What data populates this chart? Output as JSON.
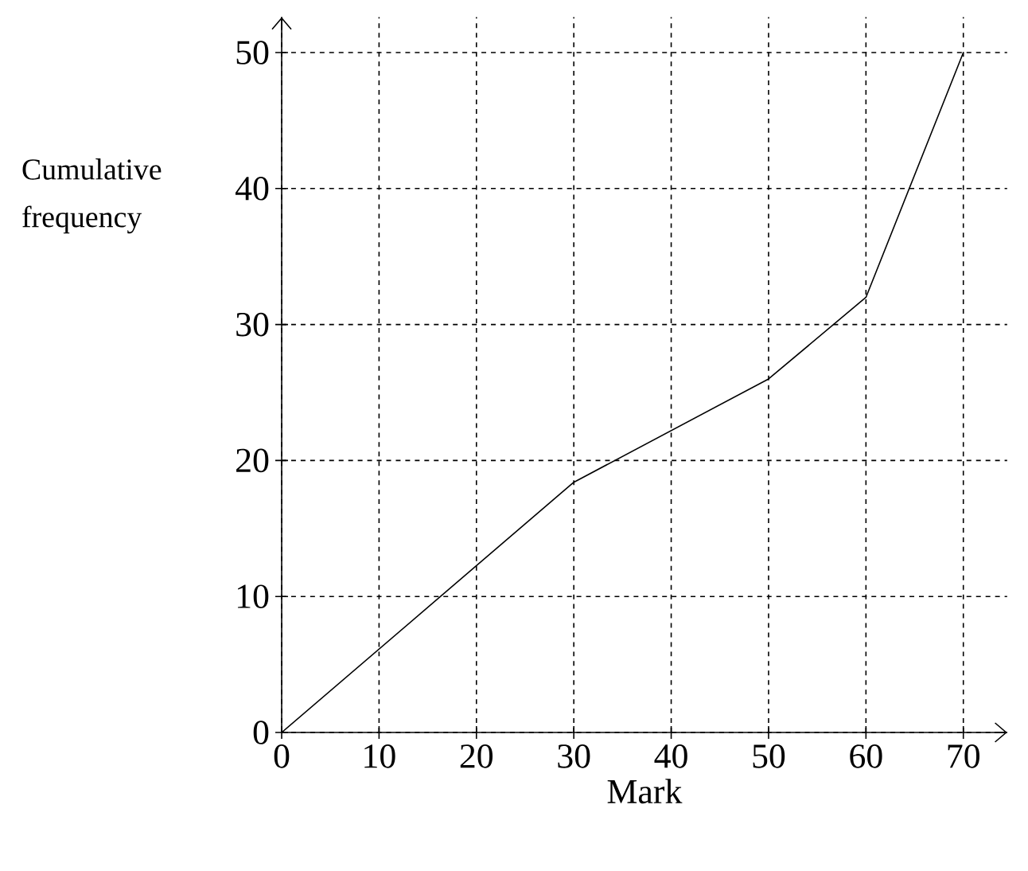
{
  "chart_data": {
    "type": "line",
    "xlabel": "Mark",
    "ylabel": "Cumulative frequency",
    "x": [
      0,
      30,
      50,
      60,
      70
    ],
    "values": [
      0,
      18.4,
      26,
      32,
      50
    ],
    "color": "#000000",
    "marker": "none",
    "line_style": "solid",
    "xlim": [
      0,
      74.5
    ],
    "ylim": [
      0,
      52.6
    ],
    "xticks": [
      0,
      10,
      20,
      30,
      40,
      50,
      60,
      70
    ],
    "yticks": [
      0,
      10,
      20,
      30,
      40,
      50
    ],
    "grid": true
  }
}
